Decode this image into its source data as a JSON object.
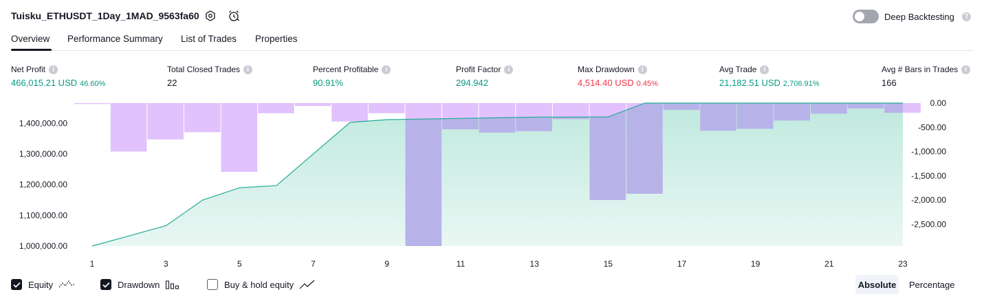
{
  "header": {
    "strategy_title": "Tuisku_ETHUSDT_1Day_1MAD_9563fa60",
    "deep_backtesting_label": "Deep Backtesting",
    "deep_backtesting_on": false
  },
  "tabs": [
    {
      "label": "Overview",
      "active": true
    },
    {
      "label": "Performance Summary",
      "active": false
    },
    {
      "label": "List of Trades",
      "active": false
    },
    {
      "label": "Properties",
      "active": false
    }
  ],
  "metrics": [
    {
      "label": "Net Profit",
      "value": "466,015.21 USD",
      "pct": "46.60%",
      "tone": "green"
    },
    {
      "label": "Total Closed Trades",
      "value": "22",
      "pct": "",
      "tone": "dark"
    },
    {
      "label": "Percent Profitable",
      "value": "90.91%",
      "pct": "",
      "tone": "green"
    },
    {
      "label": "Profit Factor",
      "value": "294.942",
      "pct": "",
      "tone": "green"
    },
    {
      "label": "Max Drawdown",
      "value": "4,514.40 USD",
      "pct": "0.45%",
      "tone": "red"
    },
    {
      "label": "Avg Trade",
      "value": "21,182.51 USD",
      "pct": "2,706.91%",
      "tone": "green"
    },
    {
      "label": "Avg # Bars in Trades",
      "value": "166",
      "pct": "",
      "tone": "dark"
    }
  ],
  "chart_data": {
    "type": "area",
    "x": [
      1,
      2,
      3,
      4,
      5,
      6,
      7,
      8,
      9,
      10,
      11,
      12,
      13,
      14,
      15,
      16,
      17,
      18,
      19,
      20,
      21,
      22,
      23
    ],
    "x_ticks": [
      "1",
      "3",
      "5",
      "7",
      "9",
      "11",
      "13",
      "15",
      "17",
      "19",
      "21",
      "23"
    ],
    "y_left_ticks": [
      "1,400,000.00",
      "1,300,000.00",
      "1,200,000.00",
      "1,100,000.00",
      "1,000,000.00"
    ],
    "y_right_ticks": [
      "0.00",
      "-500.00",
      "-1,000.00",
      "-1,500.00",
      "-2,000.00",
      "-2,500.00"
    ],
    "ylim_left": [
      1000000,
      1466015
    ],
    "ylim_right": [
      -2950,
      0
    ],
    "series": [
      {
        "name": "Equity",
        "kind": "area",
        "axis": "left",
        "values": [
          1000000,
          1033000,
          1066000,
          1150000,
          1190000,
          1197000,
          1300000,
          1403000,
          1412000,
          1414000,
          1416000,
          1418000,
          1420000,
          1420500,
          1421000,
          1466000,
          1466000,
          1466000,
          1466000,
          1466000,
          1466000,
          1466000,
          1466000
        ]
      },
      {
        "name": "Drawdown",
        "kind": "bar",
        "axis": "right",
        "values": [
          -20,
          -1000,
          -750,
          -600,
          -1420,
          -210,
          -60,
          -380,
          -210,
          -2950,
          -540,
          -610,
          -580,
          -330,
          -2000,
          -1870,
          -140,
          -570,
          -530,
          -360,
          -220,
          -110,
          -200
        ]
      }
    ],
    "colors": {
      "equity_line": "#22ab94",
      "equity_fill_top": "#bfe9de",
      "equity_fill_bottom": "#e9f7f3",
      "drawdown_bar": "#e1c2fd",
      "drawdown_overlap": "#b7b3e9"
    }
  },
  "legend": {
    "equity": {
      "label": "Equity",
      "checked": true
    },
    "drawdown": {
      "label": "Drawdown",
      "checked": true
    },
    "buy_hold": {
      "label": "Buy & hold equity",
      "checked": false
    }
  },
  "scale_buttons": {
    "absolute": "Absolute",
    "percentage": "Percentage"
  }
}
